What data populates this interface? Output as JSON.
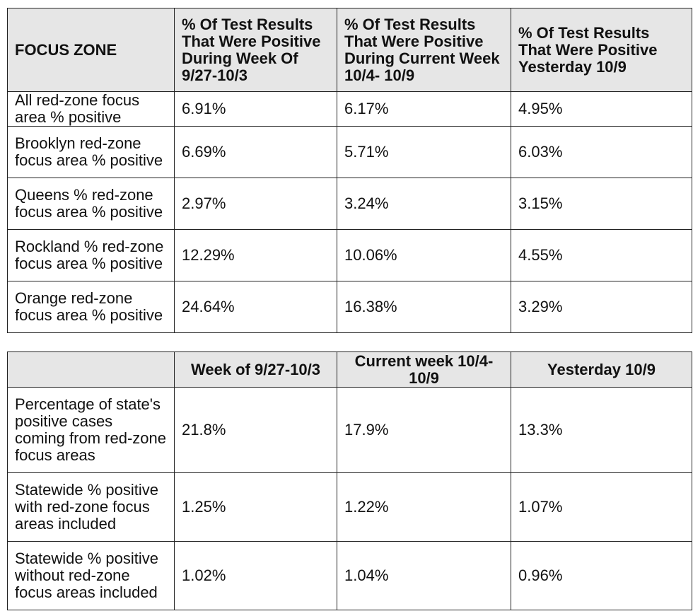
{
  "table1": {
    "headers": [
      "FOCUS ZONE",
      "% Of Test Results That Were Positive During Week Of 9/27-10/3",
      "% Of Test Results That Were Positive During Current Week 10/4- 10/9",
      "% Of Test Results That Were Positive Yesterday 10/9"
    ],
    "rows": [
      [
        "All red-zone focus area % positive",
        "6.91%",
        "6.17%",
        "4.95%"
      ],
      [
        "Brooklyn red-zone focus area % positive",
        "6.69%",
        "5.71%",
        "6.03%"
      ],
      [
        "Queens % red-zone focus area % positive",
        "2.97%",
        "3.24%",
        "3.15%"
      ],
      [
        "Rockland % red-zone focus area % positive",
        "12.29%",
        "10.06%",
        "4.55%"
      ],
      [
        "Orange red-zone focus area % positive",
        "24.64%",
        "16.38%",
        "3.29%"
      ]
    ]
  },
  "table2": {
    "headers": [
      "",
      "Week of 9/27-10/3",
      "Current week 10/4- 10/9",
      "Yesterday 10/9"
    ],
    "rows": [
      [
        "Percentage of state's positive cases coming from red-zone focus areas",
        "21.8%",
        "17.9%",
        "13.3%"
      ],
      [
        "Statewide % positive with red-zone focus areas included",
        "1.25%",
        "1.22%",
        "1.07%"
      ],
      [
        "Statewide % positive without red-zone focus areas included",
        "1.02%",
        "1.04%",
        "0.96%"
      ]
    ]
  }
}
